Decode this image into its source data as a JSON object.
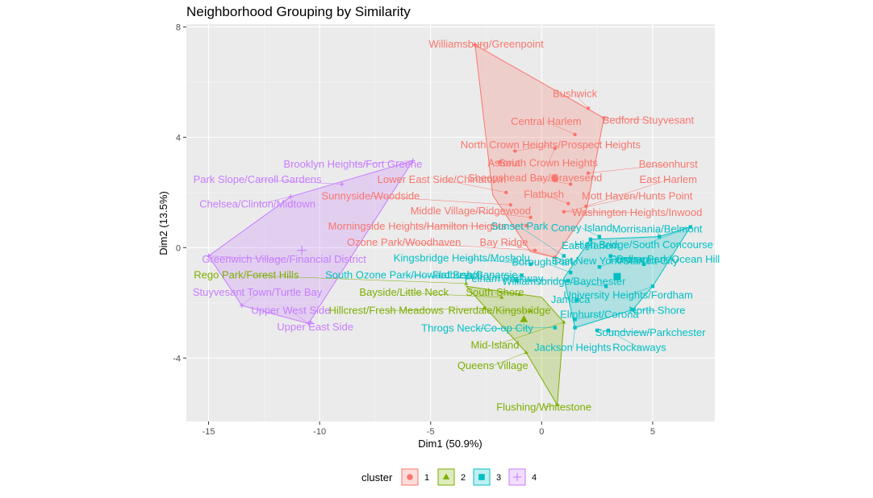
{
  "chart_data": {
    "type": "scatter",
    "title": "Neighborhood Grouping by Similarity",
    "xlabel": "Dim1 (50.9%)",
    "ylabel": "Dim2 (13.5%)",
    "xlim": [
      -16,
      7.8
    ],
    "ylim": [
      -6.3,
      8.1
    ],
    "x_ticks": [
      -15,
      -10,
      -5,
      0,
      5
    ],
    "y_ticks": [
      -4,
      0,
      4,
      8
    ],
    "x_tick_labels": [
      "-15",
      "-10",
      "-5",
      "0",
      "5"
    ],
    "y_tick_labels": [
      "-4",
      "0",
      "4",
      "8"
    ],
    "grid": true,
    "legend": {
      "title": "cluster",
      "position": "bottom",
      "entries": [
        {
          "label": "1",
          "color": "#F8766D",
          "shape": "circle"
        },
        {
          "label": "2",
          "color": "#7CAE00",
          "shape": "triangle"
        },
        {
          "label": "3",
          "color": "#00BFC4",
          "shape": "square"
        },
        {
          "label": "4",
          "color": "#C77CFF",
          "shape": "cross"
        }
      ]
    },
    "clusters": [
      {
        "id": "1",
        "color": "#F8766D",
        "hull": [
          [
            -3.0,
            7.35
          ],
          [
            2.8,
            4.7
          ],
          [
            2.0,
            1.3
          ],
          [
            0.6,
            -0.35
          ],
          [
            -0.5,
            -0.15
          ],
          [
            -2.2,
            1.9
          ]
        ],
        "centroid": [
          0.6,
          2.5
        ],
        "points": [
          {
            "label": "Williamsburg/Greenpoint",
            "x": -3.0,
            "y": 7.35,
            "lx": -2.5,
            "ly": 7.25
          },
          {
            "label": "Bushwick",
            "x": 2.1,
            "y": 5.05,
            "lx": 1.5,
            "ly": 5.45
          },
          {
            "label": "Bedford Stuyvesant",
            "x": 2.8,
            "y": 4.7,
            "lx": 4.8,
            "ly": 4.5
          },
          {
            "label": "Central Harlem",
            "x": 1.5,
            "y": 4.1,
            "lx": 0.2,
            "ly": 4.45
          },
          {
            "label": "North Crown Heights/Prospect Heights",
            "x": -1.2,
            "y": 3.5,
            "lx": 0.4,
            "ly": 3.6
          },
          {
            "label": "South Crown Heights",
            "x": 0.6,
            "y": 3.6,
            "lx": 0.3,
            "ly": 2.95
          },
          {
            "label": "Astoria",
            "x": -1.9,
            "y": 3.1,
            "lx": -1.7,
            "ly": 2.95
          },
          {
            "label": "Bensonhurst",
            "x": 2.1,
            "y": 2.7,
            "lx": 5.7,
            "ly": 2.9
          },
          {
            "label": "Lower East Side/Chinatown",
            "x": -1.6,
            "y": 2.0,
            "lx": -4.5,
            "ly": 2.35
          },
          {
            "label": "Sheepshead Bay/Gravesend",
            "x": 1.3,
            "y": 2.3,
            "lx": -0.3,
            "ly": 2.4
          },
          {
            "label": "East Harlem",
            "x": 2.0,
            "y": 1.5,
            "lx": 5.7,
            "ly": 2.35
          },
          {
            "label": "Sunnyside/Woodside",
            "x": -1.4,
            "y": 1.55,
            "lx": -7.7,
            "ly": 1.75
          },
          {
            "label": "Flatbush",
            "x": 1.2,
            "y": 1.6,
            "lx": 0.1,
            "ly": 1.8
          },
          {
            "label": "Mott Haven/Hunts Point",
            "x": 1.0,
            "y": 1.3,
            "lx": 4.3,
            "ly": 1.75
          },
          {
            "label": "Middle Village/Ridgewood",
            "x": -0.5,
            "y": 1.1,
            "lx": -3.2,
            "ly": 1.2
          },
          {
            "label": "Washington Heights/Inwood",
            "x": 1.0,
            "y": 1.3,
            "lx": 4.3,
            "ly": 1.15
          },
          {
            "label": "Ozone Park/Woodhaven",
            "x": -0.3,
            "y": -0.1,
            "lx": -6.2,
            "ly": 0.07
          },
          {
            "label": "Bay Ridge",
            "x": 0.6,
            "y": -0.35,
            "lx": -1.7,
            "ly": 0.07
          },
          {
            "label": "Morningside Heights/Hamilton Heights",
            "x": -0.7,
            "y": 0.8,
            "lx": -5.6,
            "ly": 0.65
          }
        ]
      },
      {
        "id": "2",
        "color": "#7CAE00",
        "hull": [
          [
            -3.4,
            -1.4
          ],
          [
            0.0,
            -1.8
          ],
          [
            1.0,
            -2.7
          ],
          [
            0.7,
            -5.7
          ],
          [
            -0.7,
            -3.8
          ]
        ],
        "centroid": [
          -0.8,
          -2.6
        ],
        "points": [
          {
            "label": "Rego Park/Forest Hills",
            "x": -3.4,
            "y": -1.3,
            "lx": -13.3,
            "ly": -1.12
          },
          {
            "label": "Bayside/Little Neck",
            "x": -1.8,
            "y": -1.8,
            "lx": -6.2,
            "ly": -1.75
          },
          {
            "label": "South Shore",
            "x": -1.0,
            "y": -1.7,
            "lx": -2.1,
            "ly": -1.75
          },
          {
            "label": "Hillcrest/Fresh Meadows",
            "x": -2.6,
            "y": -2.2,
            "lx": -7.0,
            "ly": -2.4
          },
          {
            "label": "Riverdale/Kingsbridge",
            "x": -0.5,
            "y": -2.3,
            "lx": -1.9,
            "ly": -2.4
          },
          {
            "label": "Mid-Island",
            "x": 1.0,
            "y": -2.7,
            "lx": -2.1,
            "ly": -3.65
          },
          {
            "label": "Queens Village",
            "x": -0.7,
            "y": -3.8,
            "lx": -2.2,
            "ly": -4.4
          },
          {
            "label": "Flushing/Whitestone",
            "x": 0.7,
            "y": -5.7,
            "lx": 0.1,
            "ly": -5.9
          }
        ]
      },
      {
        "id": "3",
        "color": "#00BFC4",
        "hull": [
          [
            1.0,
            -1.1
          ],
          [
            2.2,
            0.3
          ],
          [
            5.3,
            0.4
          ],
          [
            6.7,
            0.75
          ],
          [
            5.0,
            -1.4
          ],
          [
            4.1,
            -2.25
          ],
          [
            1.5,
            -2.9
          ]
        ],
        "centroid": [
          3.4,
          -1.05
        ],
        "points": [
          {
            "label": "Sunset Park",
            "x": 1.0,
            "y": -0.3,
            "lx": -1.0,
            "ly": 0.65
          },
          {
            "label": "Coney Island",
            "x": 2.6,
            "y": 0.4,
            "lx": 1.8,
            "ly": 0.6
          },
          {
            "label": "Morrisania/Belmont",
            "x": 5.3,
            "y": 0.4,
            "lx": 5.2,
            "ly": 0.55
          },
          {
            "label": "High Bridge/South Concourse",
            "x": 6.7,
            "y": 0.75,
            "lx": 4.6,
            "ly": -0.02
          },
          {
            "label": "East Harlem",
            "x": 2.2,
            "y": 0.3,
            "lx": 2.2,
            "ly": -0.05
          },
          {
            "label": "Borough Park",
            "x": 1.3,
            "y": -0.9,
            "lx": 0.1,
            "ly": -0.65
          },
          {
            "label": "Fordham",
            "x": 3.1,
            "y": -0.3,
            "lx": 4.0,
            "ly": -0.55
          },
          {
            "label": "Kingsbridge Heights/Mosholu",
            "x": -0.5,
            "y": -0.6,
            "lx": -3.6,
            "ly": -0.5
          },
          {
            "label": "East New York/Starrett City",
            "x": 2.6,
            "y": -0.7,
            "lx": 3.3,
            "ly": -0.6
          },
          {
            "label": "Bronx Park/Ocean Hill",
            "x": 4.6,
            "y": -0.6,
            "lx": 5.7,
            "ly": -0.55
          },
          {
            "label": "Flatbush/Canarsie",
            "x": -0.9,
            "y": -1.0,
            "lx": -3.0,
            "ly": -1.12
          },
          {
            "label": "Pelham Parkway",
            "x": 1.2,
            "y": -1.2,
            "lx": -1.7,
            "ly": -1.25
          },
          {
            "label": "Williamsbridge/Baychester",
            "x": 2.9,
            "y": -1.4,
            "lx": 1.0,
            "ly": -1.35
          },
          {
            "label": "University Heights/Fordham",
            "x": 5.0,
            "y": -1.4,
            "lx": 3.9,
            "ly": -1.85
          },
          {
            "label": "Jamaica",
            "x": 1.6,
            "y": -1.9,
            "lx": 1.3,
            "ly": -2.0
          },
          {
            "label": "North Shore",
            "x": 4.1,
            "y": -2.25,
            "lx": 5.2,
            "ly": -2.4
          },
          {
            "label": "Elmhurst/Corona",
            "x": 1.5,
            "y": -2.6,
            "lx": 2.6,
            "ly": -2.55
          },
          {
            "label": "Throgs Neck/Co-op City",
            "x": 0.6,
            "y": -2.9,
            "lx": -2.9,
            "ly": -3.05
          },
          {
            "label": "Soundview/Parkchester",
            "x": 2.5,
            "y": -3.0,
            "lx": 4.9,
            "ly": -3.2
          },
          {
            "label": "Jackson Heights",
            "x": 1.5,
            "y": -2.9,
            "lx": 1.4,
            "ly": -3.75
          },
          {
            "label": "Rockaways",
            "x": 3.0,
            "y": -3.0,
            "lx": 4.4,
            "ly": -3.75
          },
          {
            "label": "South Ozone Park/Howard Beach",
            "x": -1.1,
            "y": -1.2,
            "lx": -6.2,
            "ly": -1.12
          }
        ]
      },
      {
        "id": "4",
        "color": "#C77CFF",
        "hull": [
          [
            -5.8,
            3.15
          ],
          [
            -11.3,
            1.85
          ],
          [
            -15.0,
            -0.3
          ],
          [
            -13.5,
            -2.1
          ],
          [
            -10.5,
            -2.75
          ]
        ],
        "centroid": [
          -10.8,
          -0.1
        ],
        "points": [
          {
            "label": "Brooklyn Heights/Fort Greene",
            "x": -5.8,
            "y": 3.15,
            "lx": -8.5,
            "ly": 2.9
          },
          {
            "label": "Park Slope/Carroll Gardens",
            "x": -9.0,
            "y": 2.3,
            "lx": -12.8,
            "ly": 2.35
          },
          {
            "label": "Chelsea/Clinton/Midtown",
            "x": -11.3,
            "y": 1.85,
            "lx": -12.8,
            "ly": 1.45
          },
          {
            "label": "Greenwich Village/Financial District",
            "x": -15.0,
            "y": -0.3,
            "lx": -11.6,
            "ly": -0.55
          },
          {
            "label": "Stuyvesant Town/Turtle Bay",
            "x": -13.5,
            "y": -2.1,
            "lx": -12.8,
            "ly": -1.75
          },
          {
            "label": "Upper West Side",
            "x": -10.5,
            "y": -2.75,
            "lx": -11.3,
            "ly": -2.4
          },
          {
            "label": "Upper East Side",
            "x": -10.4,
            "y": -2.7,
            "lx": -10.2,
            "ly": -3.0
          }
        ]
      }
    ]
  }
}
